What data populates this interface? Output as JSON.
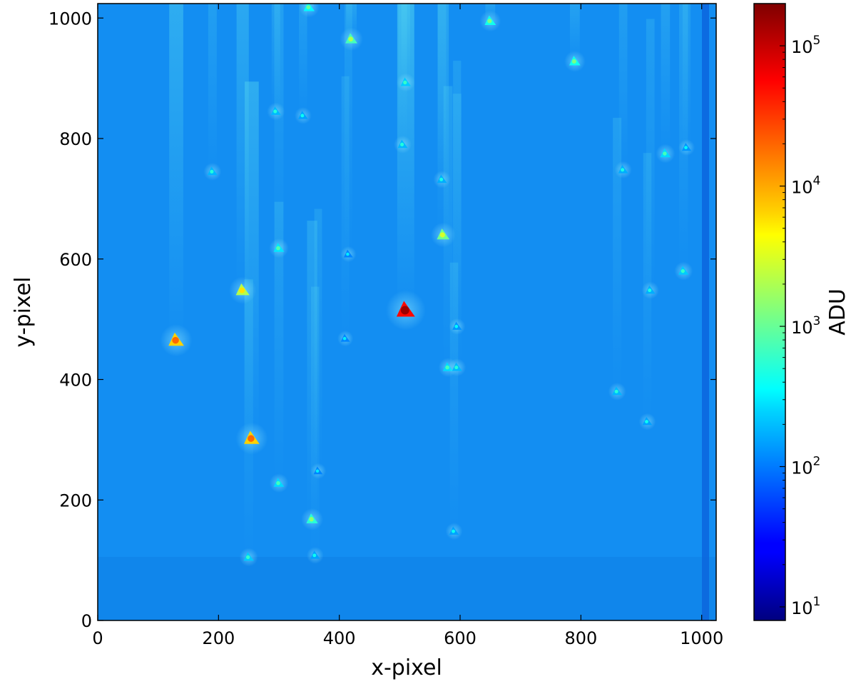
{
  "chart_data": {
    "type": "heatmap",
    "title": "",
    "xlabel": "x-pixel",
    "ylabel": "y-pixel",
    "xlim": [
      0,
      1024
    ],
    "ylim": [
      0,
      1024
    ],
    "x_ticks": [
      0,
      200,
      400,
      600,
      800,
      1000
    ],
    "y_ticks": [
      0,
      200,
      400,
      600,
      800,
      1000
    ],
    "colorbar": {
      "label": "ADU",
      "scale": "log",
      "range": [
        8,
        200000
      ],
      "colormap": "jet",
      "ticks": [
        {
          "value": 10,
          "base": "10",
          "exp": "1"
        },
        {
          "value": 100,
          "base": "10",
          "exp": "2"
        },
        {
          "value": 1000,
          "base": "10",
          "exp": "3"
        },
        {
          "value": 10000,
          "base": "10",
          "exp": "4"
        },
        {
          "value": 100000,
          "base": "10",
          "exp": "5"
        }
      ]
    },
    "background_level_adu": 120,
    "spots": [
      {
        "x": 510,
        "y": 515,
        "adu": 150000
      },
      {
        "x": 130,
        "y": 465,
        "adu": 20000
      },
      {
        "x": 255,
        "y": 302,
        "adu": 20000
      },
      {
        "x": 240,
        "y": 548,
        "adu": 6000
      },
      {
        "x": 572,
        "y": 640,
        "adu": 3000
      },
      {
        "x": 420,
        "y": 965,
        "adu": 2000
      },
      {
        "x": 355,
        "y": 168,
        "adu": 1500
      },
      {
        "x": 650,
        "y": 995,
        "adu": 1200
      },
      {
        "x": 790,
        "y": 928,
        "adu": 1200
      },
      {
        "x": 350,
        "y": 1018,
        "adu": 1000
      },
      {
        "x": 300,
        "y": 618,
        "adu": 800
      },
      {
        "x": 580,
        "y": 420,
        "adu": 700
      },
      {
        "x": 300,
        "y": 228,
        "adu": 700
      },
      {
        "x": 250,
        "y": 105,
        "adu": 600
      },
      {
        "x": 940,
        "y": 775,
        "adu": 700
      },
      {
        "x": 970,
        "y": 580,
        "adu": 600
      },
      {
        "x": 595,
        "y": 420,
        "adu": 500
      },
      {
        "x": 295,
        "y": 845,
        "adu": 500
      },
      {
        "x": 190,
        "y": 745,
        "adu": 500
      },
      {
        "x": 510,
        "y": 893,
        "adu": 600
      },
      {
        "x": 505,
        "y": 790,
        "adu": 500
      },
      {
        "x": 570,
        "y": 732,
        "adu": 450
      },
      {
        "x": 860,
        "y": 380,
        "adu": 500
      },
      {
        "x": 870,
        "y": 748,
        "adu": 450
      },
      {
        "x": 915,
        "y": 548,
        "adu": 450
      },
      {
        "x": 910,
        "y": 330,
        "adu": 400
      },
      {
        "x": 590,
        "y": 148,
        "adu": 400
      },
      {
        "x": 360,
        "y": 108,
        "adu": 400
      },
      {
        "x": 340,
        "y": 838,
        "adu": 400
      },
      {
        "x": 975,
        "y": 785,
        "adu": 350
      },
      {
        "x": 595,
        "y": 488,
        "adu": 350
      },
      {
        "x": 415,
        "y": 608,
        "adu": 300
      },
      {
        "x": 410,
        "y": 468,
        "adu": 300
      },
      {
        "x": 365,
        "y": 248,
        "adu": 300
      }
    ]
  }
}
